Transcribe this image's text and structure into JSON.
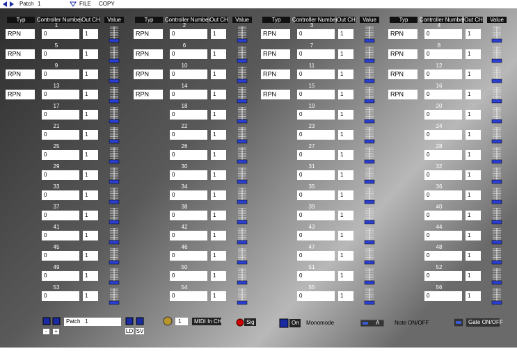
{
  "topbar": {
    "patch_label": "Patch",
    "patch_number": 1,
    "menu": [
      "FILE",
      "COPY"
    ]
  },
  "headers": [
    "Typ",
    "Controller Number",
    "Out CH",
    "Value"
  ],
  "groups": [
    {
      "rows": [
        {
          "number": 1,
          "typ": "RPN",
          "controller": 0,
          "out_ch": 1
        },
        {
          "number": 5,
          "typ": "RPN",
          "controller": 0,
          "out_ch": 1
        },
        {
          "number": 9,
          "typ": "RPN",
          "controller": 0,
          "out_ch": 1
        },
        {
          "number": 13,
          "typ": "RPN",
          "controller": 0,
          "out_ch": 1
        },
        {
          "number": 17,
          "controller": 0,
          "out_ch": 1
        },
        {
          "number": 21,
          "controller": 0,
          "out_ch": 1
        },
        {
          "number": 25,
          "controller": 0,
          "out_ch": 1
        },
        {
          "number": 29,
          "controller": 0,
          "out_ch": 1
        },
        {
          "number": 33,
          "controller": 0,
          "out_ch": 1
        },
        {
          "number": 37,
          "controller": 0,
          "out_ch": 1
        },
        {
          "number": 41,
          "controller": 0,
          "out_ch": 1
        },
        {
          "number": 45,
          "controller": 0,
          "out_ch": 1
        },
        {
          "number": 49,
          "controller": 0,
          "out_ch": 1
        },
        {
          "number": 53,
          "controller": 0,
          "out_ch": 1
        }
      ]
    },
    {
      "rows": [
        {
          "number": 2,
          "typ": "RPN",
          "controller": 0,
          "out_ch": 1
        },
        {
          "number": 6,
          "typ": "RPN",
          "controller": 0,
          "out_ch": 1
        },
        {
          "number": 10,
          "typ": "RPN",
          "controller": 0,
          "out_ch": 1
        },
        {
          "number": 14,
          "typ": "RPN",
          "controller": 0,
          "out_ch": 1
        },
        {
          "number": 18,
          "controller": 0,
          "out_ch": 1
        },
        {
          "number": 22,
          "controller": 0,
          "out_ch": 1
        },
        {
          "number": 26,
          "controller": 0,
          "out_ch": 1
        },
        {
          "number": 30,
          "controller": 0,
          "out_ch": 1
        },
        {
          "number": 34,
          "controller": 0,
          "out_ch": 1
        },
        {
          "number": 38,
          "controller": 0,
          "out_ch": 1
        },
        {
          "number": 42,
          "controller": 0,
          "out_ch": 1
        },
        {
          "number": 46,
          "controller": 0,
          "out_ch": 1
        },
        {
          "number": 50,
          "controller": 0,
          "out_ch": 1
        },
        {
          "number": 54,
          "controller": 0,
          "out_ch": 1
        }
      ]
    },
    {
      "rows": [
        {
          "number": 3,
          "typ": "RPN",
          "controller": 0,
          "out_ch": 1
        },
        {
          "number": 7,
          "typ": "RPN",
          "controller": 0,
          "out_ch": 1
        },
        {
          "number": 11,
          "typ": "RPN",
          "controller": 0,
          "out_ch": 1
        },
        {
          "number": 15,
          "typ": "RPN",
          "controller": 0,
          "out_ch": 1
        },
        {
          "number": 19,
          "controller": 0,
          "out_ch": 1
        },
        {
          "number": 23,
          "controller": 0,
          "out_ch": 1
        },
        {
          "number": 27,
          "controller": 0,
          "out_ch": 1
        },
        {
          "number": 31,
          "controller": 0,
          "out_ch": 1
        },
        {
          "number": 35,
          "controller": 0,
          "out_ch": 1
        },
        {
          "number": 39,
          "controller": 0,
          "out_ch": 1
        },
        {
          "number": 43,
          "controller": 0,
          "out_ch": 1
        },
        {
          "number": 47,
          "controller": 0,
          "out_ch": 1
        },
        {
          "number": 51,
          "controller": 0,
          "out_ch": 1
        },
        {
          "number": 55,
          "controller": 0,
          "out_ch": 1
        }
      ]
    },
    {
      "rows": [
        {
          "number": 4,
          "typ": "RPN",
          "controller": 0,
          "out_ch": 1
        },
        {
          "number": 8,
          "typ": "RPN",
          "controller": 0,
          "out_ch": 1
        },
        {
          "number": 12,
          "typ": "RPN",
          "controller": 0,
          "out_ch": 1
        },
        {
          "number": 16,
          "typ": "RPN",
          "controller": 0,
          "out_ch": 1
        },
        {
          "number": 20,
          "controller": 0,
          "out_ch": 1
        },
        {
          "number": 24,
          "controller": 0,
          "out_ch": 1
        },
        {
          "number": 28,
          "controller": 0,
          "out_ch": 1
        },
        {
          "number": 32,
          "controller": 0,
          "out_ch": 1
        },
        {
          "number": 36,
          "controller": 0,
          "out_ch": 1
        },
        {
          "number": 40,
          "controller": 0,
          "out_ch": 1
        },
        {
          "number": 44,
          "controller": 0,
          "out_ch": 1
        },
        {
          "number": 48,
          "controller": 0,
          "out_ch": 1
        },
        {
          "number": 52,
          "controller": 0,
          "out_ch": 1
        },
        {
          "number": 56,
          "controller": 0,
          "out_ch": 1
        }
      ]
    }
  ],
  "footer": {
    "patch_buttons": [
      "-",
      "+"
    ],
    "patch_name": "Patch   1",
    "file_buttons": [
      "LD",
      "SV"
    ],
    "midi_in_ch": 1,
    "midi_in_label": "MIDI In CH",
    "sig": "Sig",
    "on": "On",
    "monomode": "Monomode",
    "note_button": "A",
    "note_label": "Note ON/OFF",
    "gate_label": "Gate ON/OFF"
  }
}
